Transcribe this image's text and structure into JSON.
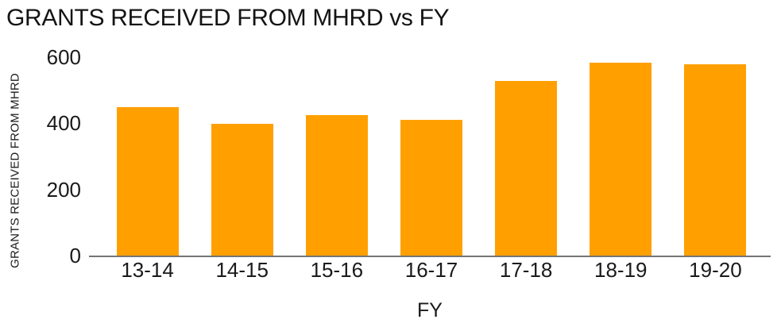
{
  "chart_data": {
    "type": "bar",
    "title": "GRANTS RECEIVED FROM MHRD vs FY",
    "xlabel": "FY",
    "ylabel": "GRANTS RECEIVED FROM MHRD",
    "categories": [
      "13-14",
      "14-15",
      "15-16",
      "16-17",
      "17-18",
      "18-19",
      "19-20"
    ],
    "values": [
      450,
      398,
      425,
      411,
      529,
      583,
      578
    ],
    "ylim": [
      0,
      600
    ],
    "yticks": [
      0,
      200,
      400,
      600
    ],
    "grid": false,
    "legend": false,
    "colors": {
      "bar": "#FFA000",
      "axis_line": "#757575",
      "text": "#1a1a1a"
    }
  }
}
